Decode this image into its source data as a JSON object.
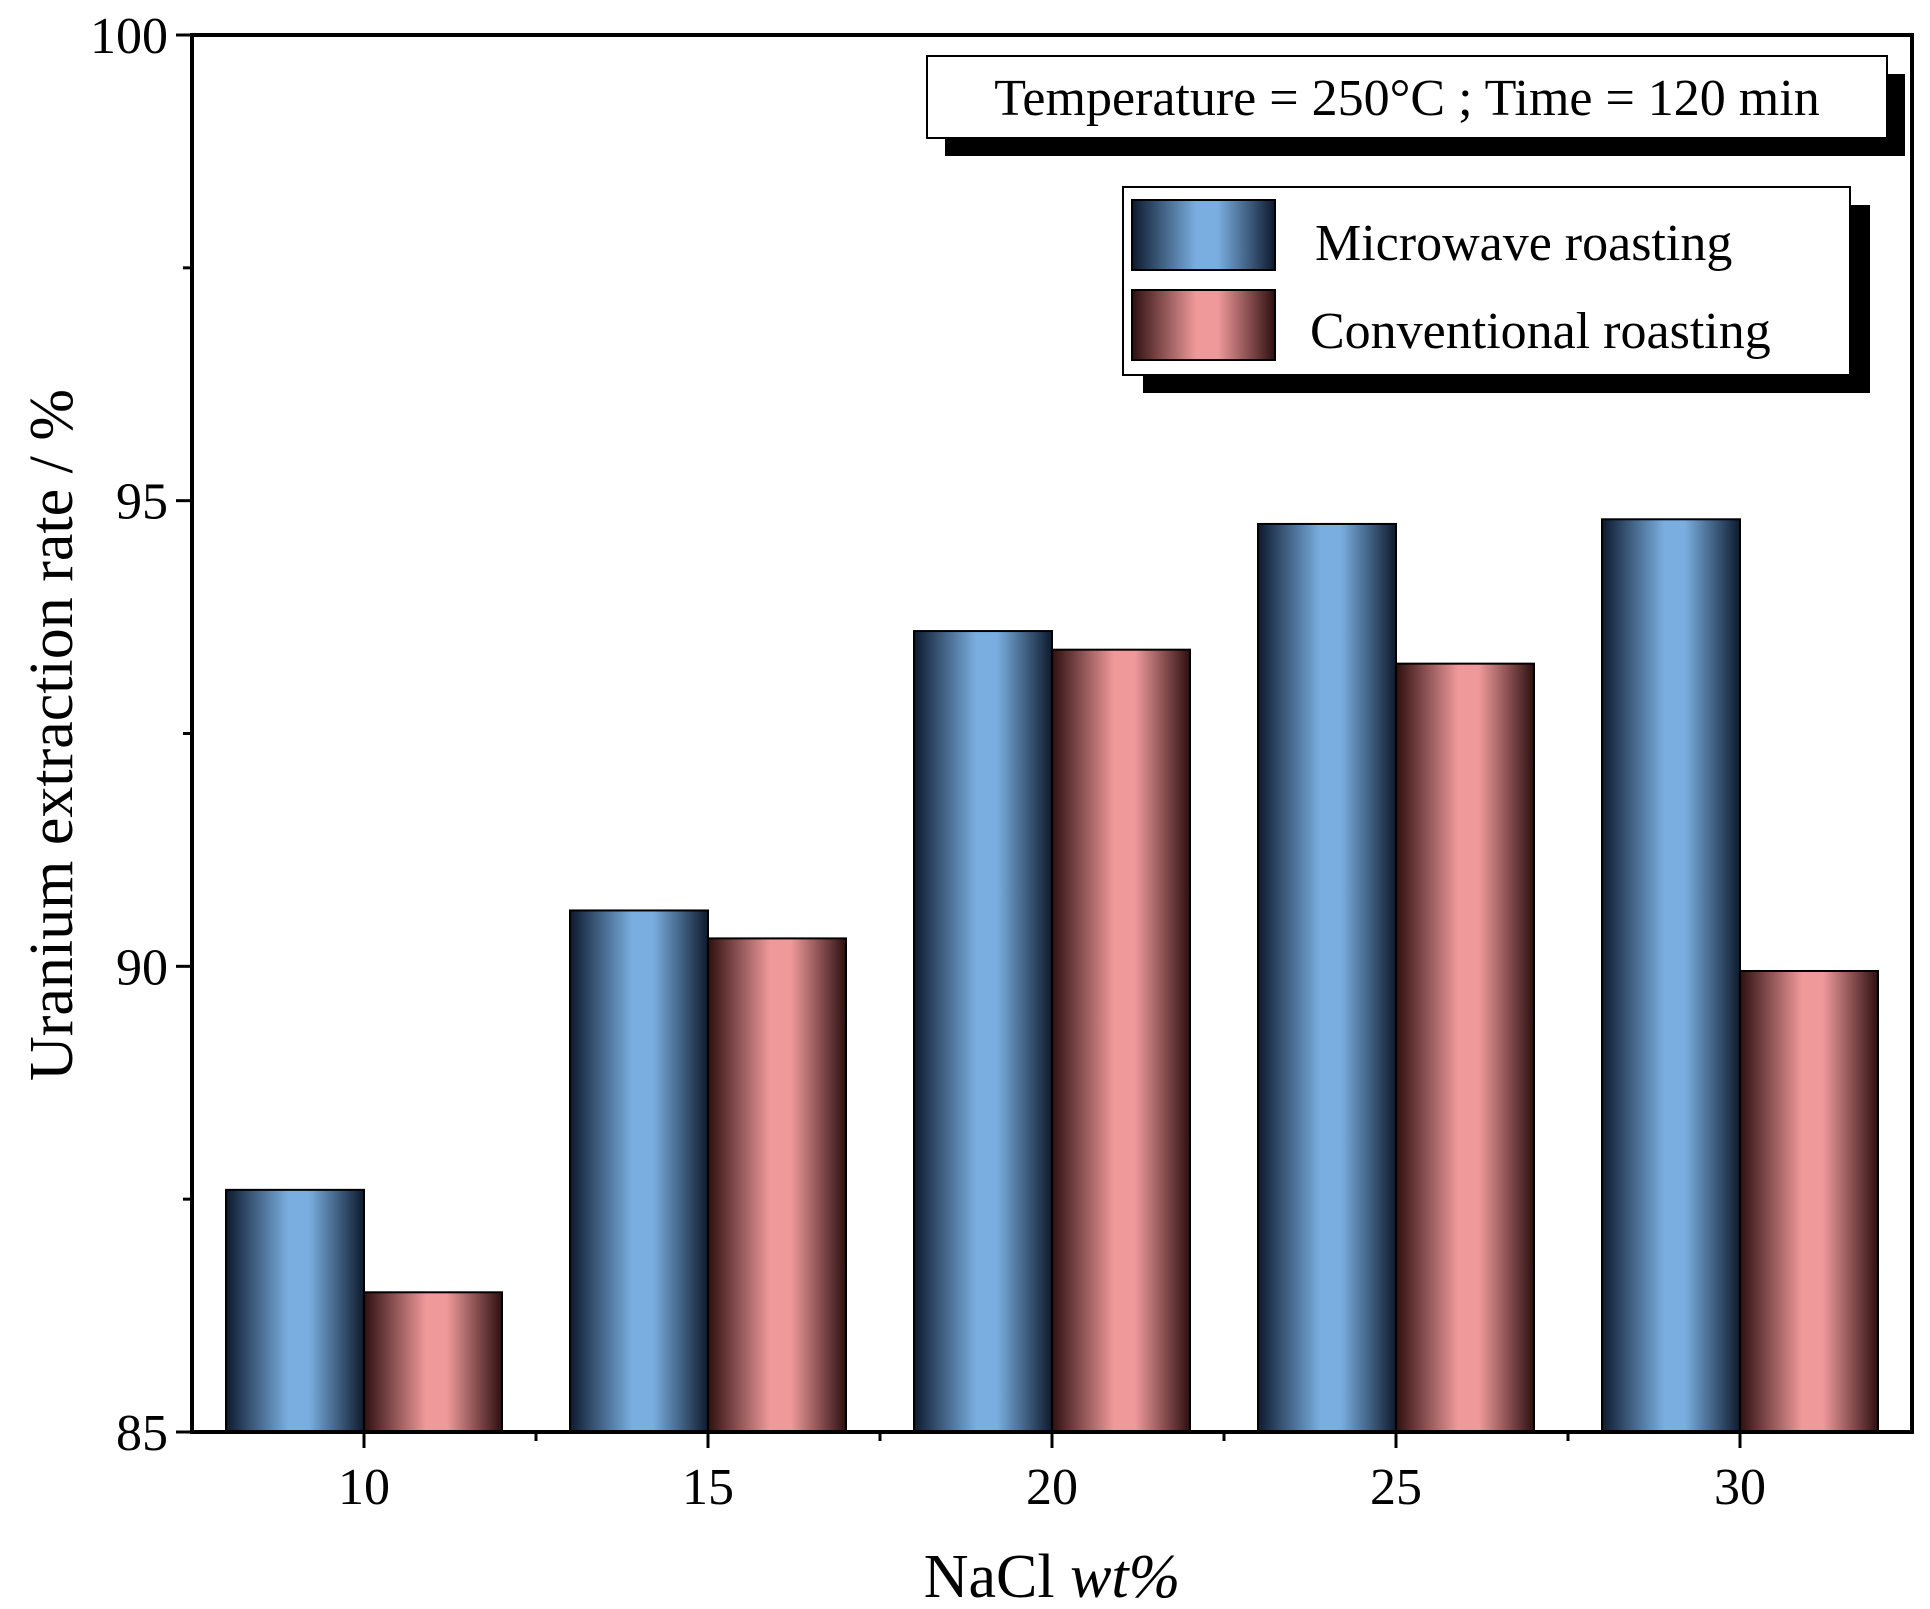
{
  "chart_data": {
    "type": "bar",
    "title": "",
    "xlabel": "NaCl",
    "xlabel_italic": "wt%",
    "ylabel": "Uranium extraction rate / %",
    "categories": [
      "10",
      "15",
      "20",
      "25",
      "30"
    ],
    "ylim": [
      85,
      100
    ],
    "yticks": [
      "85",
      "90",
      "95",
      "100"
    ],
    "series": [
      {
        "name": "Microwave roasting",
        "values": [
          87.6,
          90.6,
          93.6,
          94.75,
          94.8
        ],
        "color": "#7aaee0",
        "shade": "#0d1a2e"
      },
      {
        "name": "Conventional roasting",
        "values": [
          86.5,
          90.3,
          93.4,
          93.25,
          89.95
        ],
        "color": "#f0999a",
        "shade": "#2e0f10"
      }
    ],
    "annotation": "Temperature = 250°C ; Time = 120 min",
    "legend_position": "top-right",
    "grid": false
  }
}
